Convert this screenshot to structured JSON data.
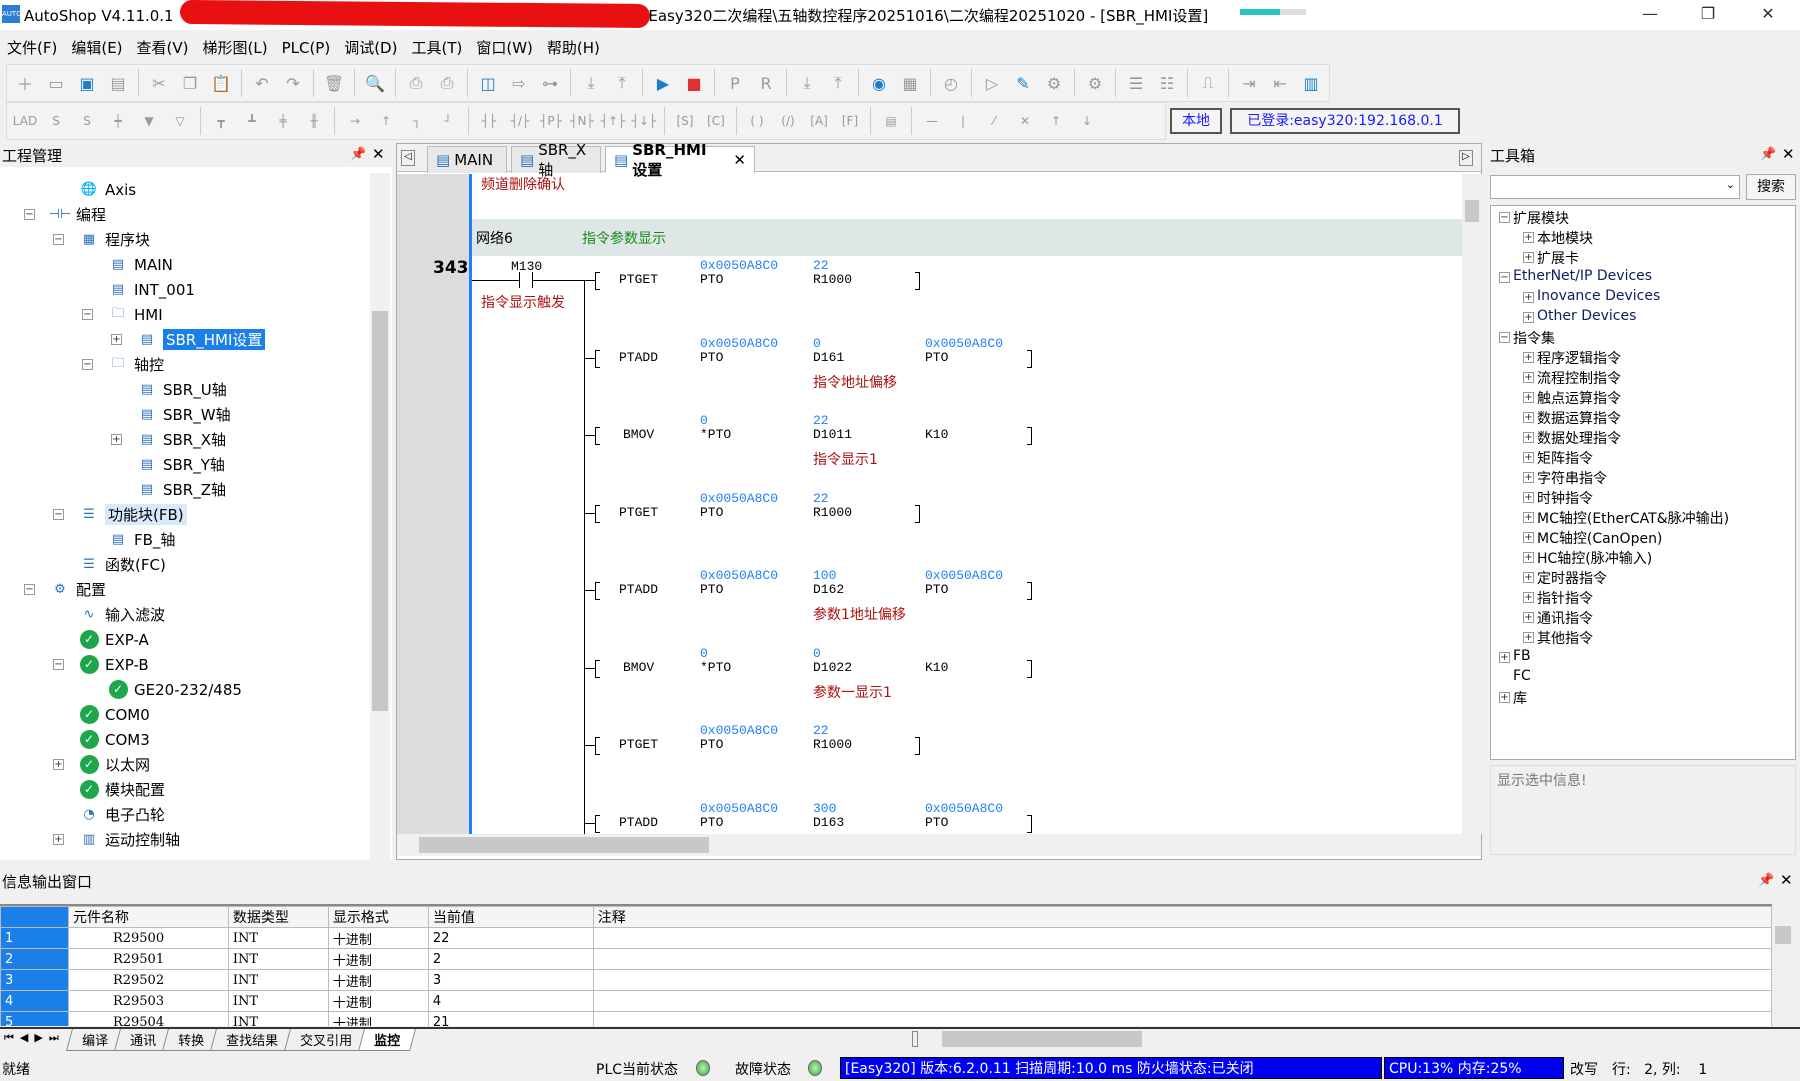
{
  "window": {
    "app": "AutoShop V4.11.0.1",
    "title_rest": "Easy320二次编程\\五轴数控程序20251016\\二次编程20251020 - [SBR_HMI设置]",
    "progress": 0.6
  },
  "menu": [
    "文件(F)",
    "编辑(E)",
    "查看(V)",
    "梯形图(L)",
    "PLC(P)",
    "调试(D)",
    "工具(T)",
    "窗口(W)",
    "帮助(H)"
  ],
  "toolbar1": [
    "new-icon",
    "open-icon",
    "save-icon",
    "save-all-icon",
    "|",
    "cut-icon",
    "copy-icon",
    "paste-icon",
    "|",
    "undo-icon",
    "redo-icon",
    "|",
    "delete-icon",
    "|",
    "search-icon",
    "|",
    "print-preview-icon",
    "print-icon",
    "|",
    "window-icon",
    "window-export-icon",
    "monitor-io-icon",
    "|",
    "download-icon",
    "upload-all-icon",
    "|",
    "run-icon",
    "stop-icon",
    "|",
    "plc-icon",
    "rtu-icon",
    "|",
    "download-plc-icon",
    "upload-plc-icon",
    "|",
    "monitor-icon",
    "table-icon",
    "|",
    "timer-icon",
    "|",
    "edit-run-icon",
    "edit-icon",
    "tool-icon",
    "|",
    "tool2-icon",
    "|",
    "insert-row-icon",
    "delete-row-icon",
    "|",
    "test-icon",
    "|",
    "login-icon",
    "logout-icon",
    "panel-icon"
  ],
  "toolbar1_glyphs": {
    "new-icon": "＋",
    "open-icon": "▭",
    "save-icon": "▣",
    "save-all-icon": "▤",
    "cut-icon": "✂",
    "copy-icon": "❐",
    "paste-icon": "📋",
    "undo-icon": "↶",
    "redo-icon": "↷",
    "delete-icon": "🗑",
    "search-icon": "🔍",
    "print-preview-icon": "⎙",
    "print-icon": "⎙",
    "window-icon": "◫",
    "window-export-icon": "⇨",
    "monitor-io-icon": "⊶",
    "download-icon": "⤓",
    "upload-all-icon": "⤒",
    "run-icon": "▶",
    "stop-icon": "■",
    "plc-icon": "P",
    "rtu-icon": "R",
    "download-plc-icon": "⤓",
    "upload-plc-icon": "⤒",
    "monitor-icon": "◉",
    "table-icon": "▦",
    "timer-icon": "◴",
    "edit-run-icon": "▷",
    "edit-icon": "✎",
    "tool-icon": "⚙",
    "tool2-icon": "⚙",
    "insert-row-icon": "☰",
    "delete-row-icon": "☷",
    "test-icon": "⎍",
    "login-icon": "⇥",
    "logout-icon": "⇤",
    "panel-icon": "▥"
  },
  "toolbar2": [
    "lad-icon",
    "s-box-icon",
    "s-icon",
    "contact-icon",
    "down-fill-icon",
    "down-icon",
    "|",
    "branch1-icon",
    "branch2-icon",
    "branch3-icon",
    "branch4-icon",
    "|",
    "hline-icon",
    "vline-icon",
    "corner-icon",
    "corner2-icon",
    "|",
    "no-contact-icon",
    "nc-contact-icon",
    "p-contact-icon",
    "n-contact-icon",
    "rise-icon",
    "fall-icon",
    "|",
    "set-icon",
    "counter-icon",
    "|",
    "coil-icon",
    "inv-coil-icon",
    "a-icon",
    "f-icon",
    "|",
    "comment-icon",
    "|",
    "line-icon",
    "vbar-icon",
    "slash-icon",
    "cross-icon",
    "up-icon",
    "down-arrow-icon"
  ],
  "toolbar2_glyphs": {
    "lad-icon": "LAD",
    "s-box-icon": "S",
    "s-icon": "S",
    "contact-icon": "┿",
    "down-fill-icon": "▼",
    "down-icon": "▽",
    "branch1-icon": "┳",
    "branch2-icon": "┻",
    "branch3-icon": "╪",
    "branch4-icon": "╫",
    "hline-icon": "→",
    "vline-icon": "↑",
    "corner-icon": "┐",
    "corner2-icon": "┘",
    "no-contact-icon": "┤├",
    "nc-contact-icon": "┤/├",
    "p-contact-icon": "┤P├",
    "n-contact-icon": "┤N├",
    "rise-icon": "┤↑├",
    "fall-icon": "┤↓├",
    "set-icon": "[S]",
    "counter-icon": "[C]",
    "coil-icon": "( )",
    "inv-coil-icon": "(/)",
    "a-icon": "[A]",
    "f-icon": "[F]",
    "comment-icon": "▤",
    "line-icon": "—",
    "vbar-icon": "|",
    "slash-icon": "⁄",
    "cross-icon": "✕",
    "up-icon": "↑",
    "down-arrow-icon": "↓"
  },
  "conn": {
    "local": "本地",
    "login": "已登录:easy320:192.168.0.1"
  },
  "project": {
    "title": "工程管理",
    "items": [
      {
        "label": "Axis",
        "lvl": 1,
        "icon": "globe-icon",
        "g": "🌐"
      },
      {
        "label": "编程",
        "lvl": 0,
        "exp": "-",
        "icon": "program-icon",
        "g": "⊣⊢"
      },
      {
        "label": "程序块",
        "lvl": 1,
        "exp": "-",
        "icon": "blocks-icon",
        "g": "▦"
      },
      {
        "label": "MAIN",
        "lvl": 2,
        "icon": "main-file-icon",
        "g": "▤"
      },
      {
        "label": "INT_001",
        "lvl": 2,
        "icon": "int-file-icon",
        "g": "▤"
      },
      {
        "label": "HMI",
        "lvl": 2,
        "exp": "-",
        "icon": "folder-icon",
        "g": "🗀"
      },
      {
        "label": "SBR_HMI设置",
        "lvl": 3,
        "exp": "+",
        "icon": "sbr-file-icon",
        "g": "▤",
        "state": "sel"
      },
      {
        "label": "轴控",
        "lvl": 2,
        "exp": "-",
        "icon": "folder-icon",
        "g": "🗀"
      },
      {
        "label": "SBR_U轴",
        "lvl": 3,
        "icon": "sbr-file-icon",
        "g": "▤"
      },
      {
        "label": "SBR_W轴",
        "lvl": 3,
        "icon": "sbr-file-icon",
        "g": "▤"
      },
      {
        "label": "SBR_X轴",
        "lvl": 3,
        "exp": "+",
        "icon": "sbr-file-icon",
        "g": "▤"
      },
      {
        "label": "SBR_Y轴",
        "lvl": 3,
        "icon": "sbr-file-icon",
        "g": "▤"
      },
      {
        "label": "SBR_Z轴",
        "lvl": 3,
        "icon": "sbr-file-icon",
        "g": "▤"
      },
      {
        "label": "功能块(FB)",
        "lvl": 1,
        "exp": "-",
        "icon": "fb-icon",
        "g": "☰",
        "state": "hl"
      },
      {
        "label": "FB_轴",
        "lvl": 2,
        "icon": "fb-file-icon",
        "g": "▤"
      },
      {
        "label": "函数(FC)",
        "lvl": 1,
        "icon": "fc-icon",
        "g": "☰"
      },
      {
        "label": "配置",
        "lvl": 0,
        "exp": "-",
        "icon": "config-icon",
        "g": "⚙"
      },
      {
        "label": "输入滤波",
        "lvl": 1,
        "icon": "filter-icon",
        "g": "∿"
      },
      {
        "label": "EXP-A",
        "lvl": 1,
        "icon": "check-icon",
        "g": "✓"
      },
      {
        "label": "EXP-B",
        "lvl": 1,
        "exp": "-",
        "icon": "check-icon",
        "g": "✓"
      },
      {
        "label": "GE20-232/485",
        "lvl": 2,
        "icon": "check-icon",
        "g": "✓"
      },
      {
        "label": "COM0",
        "lvl": 1,
        "icon": "check-icon",
        "g": "✓"
      },
      {
        "label": "COM3",
        "lvl": 1,
        "icon": "check-icon",
        "g": "✓"
      },
      {
        "label": "以太网",
        "lvl": 1,
        "exp": "+",
        "icon": "check-icon",
        "g": "✓"
      },
      {
        "label": "模块配置",
        "lvl": 1,
        "icon": "check-icon",
        "g": "✓"
      },
      {
        "label": "电子凸轮",
        "lvl": 1,
        "icon": "cam-icon",
        "g": "◔"
      },
      {
        "label": "运动控制轴",
        "lvl": 1,
        "exp": "+",
        "icon": "axis-icon",
        "g": "▥"
      }
    ]
  },
  "tabs": [
    {
      "label": "MAIN"
    },
    {
      "label": "SBR_X轴"
    },
    {
      "label": "SBR_HMI设置",
      "active": true
    }
  ],
  "ladder": {
    "prev_comment": "频道删除确认",
    "network": "网络6",
    "network_comment": "指令参数显示",
    "line_no": "343",
    "contact": "M130",
    "contact_comment": "指令显示触发",
    "rows": [
      {
        "op": "PTGET",
        "a": [
          "0x0050A8C0",
          "PTO"
        ],
        "b": [
          "22",
          "R1000"
        ]
      },
      {
        "op": "PTADD",
        "a": [
          "0x0050A8C0",
          "PTO"
        ],
        "b": [
          "0",
          "D161"
        ],
        "c": [
          "0x0050A8C0",
          "PTO"
        ],
        "note": "指令地址偏移"
      },
      {
        "op": "BMOV",
        "a": [
          "0",
          "*PTO"
        ],
        "b": [
          "22",
          "D1011"
        ],
        "c": [
          "",
          "K10"
        ],
        "note": "指令显示1"
      },
      {
        "op": "PTGET",
        "a": [
          "0x0050A8C0",
          "PTO"
        ],
        "b": [
          "22",
          "R1000"
        ]
      },
      {
        "op": "PTADD",
        "a": [
          "0x0050A8C0",
          "PTO"
        ],
        "b": [
          "100",
          "D162"
        ],
        "c": [
          "0x0050A8C0",
          "PTO"
        ],
        "note": "参数1地址偏移"
      },
      {
        "op": "BMOV",
        "a": [
          "0",
          "*PTO"
        ],
        "b": [
          "0",
          "D1022"
        ],
        "c": [
          "",
          "K10"
        ],
        "note": "参数一显示1"
      },
      {
        "op": "PTGET",
        "a": [
          "0x0050A8C0",
          "PTO"
        ],
        "b": [
          "22",
          "R1000"
        ]
      },
      {
        "op": "PTADD",
        "a": [
          "0x0050A8C0",
          "PTO"
        ],
        "b": [
          "300",
          "D163"
        ],
        "c": [
          "0x0050A8C0",
          "PTO"
        ]
      }
    ]
  },
  "toolbox": {
    "title": "工具箱",
    "search": "搜索",
    "info": "显示选中信息!",
    "items": [
      {
        "label": "扩展模块",
        "lvl": 0,
        "exp": "-"
      },
      {
        "label": "本地模块",
        "lvl": 1,
        "exp": "+"
      },
      {
        "label": "扩展卡",
        "lvl": 1,
        "exp": "+"
      },
      {
        "label": "EtherNet/IP Devices",
        "lvl": 0,
        "exp": "-"
      },
      {
        "label": "Inovance Devices",
        "lvl": 1,
        "exp": "+"
      },
      {
        "label": "Other Devices",
        "lvl": 1,
        "exp": "+"
      },
      {
        "label": "指令集",
        "lvl": 0,
        "exp": "-"
      },
      {
        "label": "程序逻辑指令",
        "lvl": 1,
        "exp": "+"
      },
      {
        "label": "流程控制指令",
        "lvl": 1,
        "exp": "+"
      },
      {
        "label": "触点运算指令",
        "lvl": 1,
        "exp": "+"
      },
      {
        "label": "数据运算指令",
        "lvl": 1,
        "exp": "+"
      },
      {
        "label": "数据处理指令",
        "lvl": 1,
        "exp": "+"
      },
      {
        "label": "矩阵指令",
        "lvl": 1,
        "exp": "+"
      },
      {
        "label": "字符串指令",
        "lvl": 1,
        "exp": "+"
      },
      {
        "label": "时钟指令",
        "lvl": 1,
        "exp": "+"
      },
      {
        "label": "MC轴控(EtherCAT&脉冲输出)",
        "lvl": 1,
        "exp": "+"
      },
      {
        "label": "MC轴控(CanOpen)",
        "lvl": 1,
        "exp": "+"
      },
      {
        "label": "HC轴控(脉冲输入)",
        "lvl": 1,
        "exp": "+"
      },
      {
        "label": "定时器指令",
        "lvl": 1,
        "exp": "+"
      },
      {
        "label": "指针指令",
        "lvl": 1,
        "exp": "+"
      },
      {
        "label": "通讯指令",
        "lvl": 1,
        "exp": "+"
      },
      {
        "label": "其他指令",
        "lvl": 1,
        "exp": "+"
      },
      {
        "label": "FB",
        "lvl": 0,
        "exp": "+"
      },
      {
        "label": "FC",
        "lvl": 0
      },
      {
        "label": "库",
        "lvl": 0,
        "exp": "+"
      }
    ]
  },
  "info": {
    "title": "信息输出窗口",
    "columns": [
      "",
      "元件名称",
      "数据类型",
      "显示格式",
      "当前值",
      "注释"
    ],
    "rows": [
      [
        "1",
        "R29500",
        "INT",
        "十进制",
        "22",
        ""
      ],
      [
        "2",
        "R29501",
        "INT",
        "十进制",
        "2",
        ""
      ],
      [
        "3",
        "R29502",
        "INT",
        "十进制",
        "3",
        ""
      ],
      [
        "4",
        "R29503",
        "INT",
        "十进制",
        "4",
        ""
      ],
      [
        "5",
        "R29504",
        "INT",
        "十进制",
        "21",
        ""
      ]
    ],
    "tabs": [
      "编译",
      "通讯",
      "转换",
      "查找结果",
      "交叉引用",
      "监控"
    ],
    "active_tab": "监控"
  },
  "status": {
    "ready": "就绪",
    "plc_state": "PLC当前状态",
    "fault": "故障状态",
    "plc_info": "[Easy320] 版本:6.2.0.11 扫描周期:10.0 ms 防火墙状态:已关闭",
    "cpu": "CPU:13%  内存:25%",
    "mode": "改写",
    "pos": "行:   2, 列:    1"
  }
}
